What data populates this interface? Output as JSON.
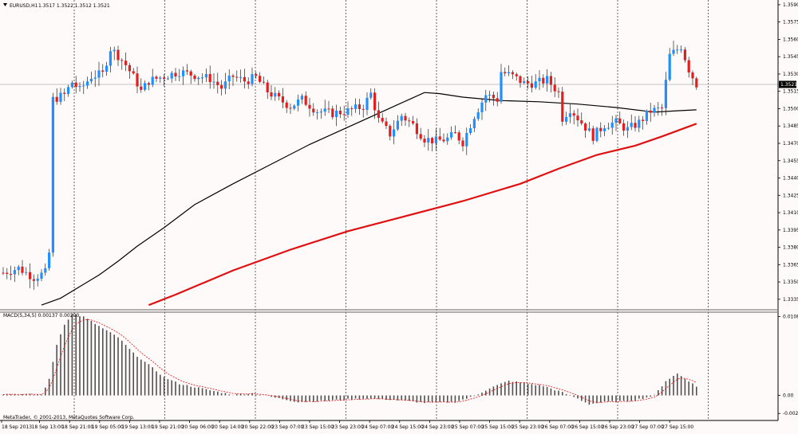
{
  "colors": {
    "background": "#fffafa",
    "bull": "#1e90ff",
    "bear": "#e0201e",
    "ma_fast": "#000000",
    "ma_slow": "#e01010",
    "macd_hist": "#505050",
    "macd_signal": "#e01010",
    "grid": "#000000",
    "price_line": "#b0b0b0",
    "price_label_bg": "#000000",
    "price_label_fg": "#ffffff"
  },
  "header": {
    "symbol": "EURUSD,H1",
    "ohlc": "1.3517 1.3522 1.3512 1.3521",
    "menu_icon": "triangle-down-icon"
  },
  "current_price_label": "1.3521",
  "macd_header": "MACD(5,34,5) 0.00137 0.00200",
  "copyright": "MetaTrader, © 2001-2013, MetaQuotes Software Corp.",
  "chart_data": [
    {
      "type": "candlestick",
      "ylim": [
        1.3328,
        1.3592
      ],
      "y_ticks": [
        "1.3590",
        "1.3575",
        "1.3560",
        "1.3545",
        "1.3530",
        "1.3515",
        "1.3500",
        "1.3485",
        "1.3470",
        "1.3455",
        "1.3440",
        "1.3425",
        "1.3410",
        "1.3395",
        "1.3380",
        "1.3365",
        "1.3350",
        "1.3335"
      ],
      "x_ticks": [
        "18 Sep 2013",
        "18 Sep 13:00",
        "18 Sep 21:00",
        "19 Sep 05:00",
        "19 Sep 13:00",
        "19 Sep 21:00",
        "20 Sep 06:00",
        "20 Sep 14:00",
        "20 Sep 22:00",
        "23 Sep 07:00",
        "23 Sep 15:00",
        "23 Sep 23:00",
        "24 Sep 07:00",
        "24 Sep 15:00",
        "24 Sep 23:00",
        "25 Sep 07:00",
        "25 Sep 15:00",
        "25 Sep 23:00",
        "26 Sep 07:00",
        "26 Sep 15:00",
        "26 Sep 23:00",
        "27 Sep 07:00",
        "27 Sep 15:00"
      ],
      "anchors": [
        [
          0,
          1.3358
        ],
        [
          4,
          1.3362
        ],
        [
          8,
          1.3354
        ],
        [
          11,
          1.3358
        ],
        [
          12,
          1.3375
        ],
        [
          13,
          1.3508
        ],
        [
          16,
          1.3512
        ],
        [
          18,
          1.3523
        ],
        [
          20,
          1.3516
        ],
        [
          23,
          1.3528
        ],
        [
          26,
          1.353
        ],
        [
          28,
          1.3552
        ],
        [
          30,
          1.3546
        ],
        [
          32,
          1.3538
        ],
        [
          35,
          1.3522
        ],
        [
          36,
          1.3515
        ],
        [
          38,
          1.3524
        ],
        [
          42,
          1.3528
        ],
        [
          46,
          1.3532
        ],
        [
          50,
          1.3529
        ],
        [
          54,
          1.3526
        ],
        [
          57,
          1.3518
        ],
        [
          60,
          1.3528
        ],
        [
          63,
          1.3524
        ],
        [
          66,
          1.3527
        ],
        [
          69,
          1.3515
        ],
        [
          72,
          1.3508
        ],
        [
          75,
          1.3502
        ],
        [
          78,
          1.3508
        ],
        [
          82,
          1.3498
        ],
        [
          86,
          1.3496
        ],
        [
          90,
          1.3498
        ],
        [
          94,
          1.3502
        ],
        [
          96,
          1.3513
        ],
        [
          98,
          1.349
        ],
        [
          101,
          1.3478
        ],
        [
          104,
          1.3494
        ],
        [
          107,
          1.3486
        ],
        [
          110,
          1.3474
        ],
        [
          113,
          1.3472
        ],
        [
          116,
          1.3474
        ],
        [
          118,
          1.3478
        ],
        [
          120,
          1.3471
        ],
        [
          123,
          1.3494
        ],
        [
          126,
          1.3512
        ],
        [
          129,
          1.3508
        ],
        [
          130,
          1.3532
        ],
        [
          133,
          1.3528
        ],
        [
          136,
          1.3522
        ],
        [
          139,
          1.3522
        ],
        [
          142,
          1.3525
        ],
        [
          145,
          1.3514
        ],
        [
          146,
          1.3492
        ],
        [
          148,
          1.35
        ],
        [
          151,
          1.3488
        ],
        [
          154,
          1.3476
        ],
        [
          157,
          1.3486
        ],
        [
          160,
          1.3488
        ],
        [
          163,
          1.3482
        ],
        [
          166,
          1.3488
        ],
        [
          169,
          1.3498
        ],
        [
          172,
          1.35
        ],
        [
          174,
          1.3546
        ],
        [
          177,
          1.3554
        ],
        [
          179,
          1.3534
        ],
        [
          181,
          1.3521
        ]
      ],
      "series": [
        {
          "name": "",
          "type": "line",
          "points": [
            [
              10,
              1.333
            ],
            [
              15,
              1.3336
            ],
            [
              20,
              1.3346
            ],
            [
              25,
              1.3356
            ],
            [
              30,
              1.3368
            ],
            [
              35,
              1.3381
            ],
            [
              42,
              1.3397
            ],
            [
              50,
              1.3417
            ],
            [
              60,
              1.3435
            ],
            [
              70,
              1.3452
            ],
            [
              80,
              1.3469
            ],
            [
              90,
              1.3484
            ],
            [
              100,
              1.3499
            ],
            [
              110,
              1.3514
            ],
            [
              114,
              1.3513
            ],
            [
              120,
              1.351
            ],
            [
              130,
              1.3507
            ],
            [
              140,
              1.3506
            ],
            [
              150,
              1.3504
            ],
            [
              160,
              1.3501
            ],
            [
              170,
              1.3497
            ],
            [
              175,
              1.3498
            ],
            [
              181,
              1.3499
            ]
          ]
        },
        {
          "name": "",
          "type": "line",
          "points": [
            [
              38,
              1.333
            ],
            [
              45,
              1.3339
            ],
            [
              60,
              1.336
            ],
            [
              75,
              1.3378
            ],
            [
              90,
              1.3394
            ],
            [
              105,
              1.3407
            ],
            [
              120,
              1.342
            ],
            [
              135,
              1.3435
            ],
            [
              145,
              1.3448
            ],
            [
              155,
              1.346
            ],
            [
              165,
              1.3468
            ],
            [
              172,
              1.3476
            ],
            [
              181,
              1.3487
            ]
          ]
        }
      ]
    },
    {
      "type": "bar",
      "name": "MACD(5,34,5)",
      "ylim": [
        -0.003,
        0.011
      ],
      "y_ticks": [
        "0.01083",
        "0.00",
        "-0.00248"
      ],
      "histogram_anchors": [
        [
          0,
          0.0002
        ],
        [
          10,
          0.0001
        ],
        [
          12,
          0.0022
        ],
        [
          14,
          0.007
        ],
        [
          16,
          0.0098
        ],
        [
          18,
          0.0112
        ],
        [
          21,
          0.0108
        ],
        [
          26,
          0.0092
        ],
        [
          30,
          0.008
        ],
        [
          34,
          0.0058
        ],
        [
          38,
          0.0042
        ],
        [
          42,
          0.0025
        ],
        [
          46,
          0.0016
        ],
        [
          55,
          0.0006
        ],
        [
          60,
          0.0001
        ],
        [
          65,
          0.0003
        ],
        [
          70,
          -0.0002
        ],
        [
          77,
          -0.0009
        ],
        [
          85,
          -0.0007
        ],
        [
          95,
          -0.0004
        ],
        [
          102,
          -0.0006
        ],
        [
          110,
          -0.001
        ],
        [
          118,
          -0.0009
        ],
        [
          123,
          -0.0001
        ],
        [
          127,
          0.001
        ],
        [
          132,
          0.002
        ],
        [
          136,
          0.0017
        ],
        [
          141,
          0.0013
        ],
        [
          145,
          0.0006
        ],
        [
          149,
          -0.0002
        ],
        [
          153,
          -0.0012
        ],
        [
          157,
          -0.0009
        ],
        [
          163,
          -0.0008
        ],
        [
          167,
          -0.0004
        ],
        [
          170,
          0.0
        ],
        [
          173,
          0.002
        ],
        [
          176,
          0.003
        ],
        [
          179,
          0.002
        ],
        [
          181,
          0.0012
        ]
      ],
      "signal_lag": 3
    }
  ]
}
